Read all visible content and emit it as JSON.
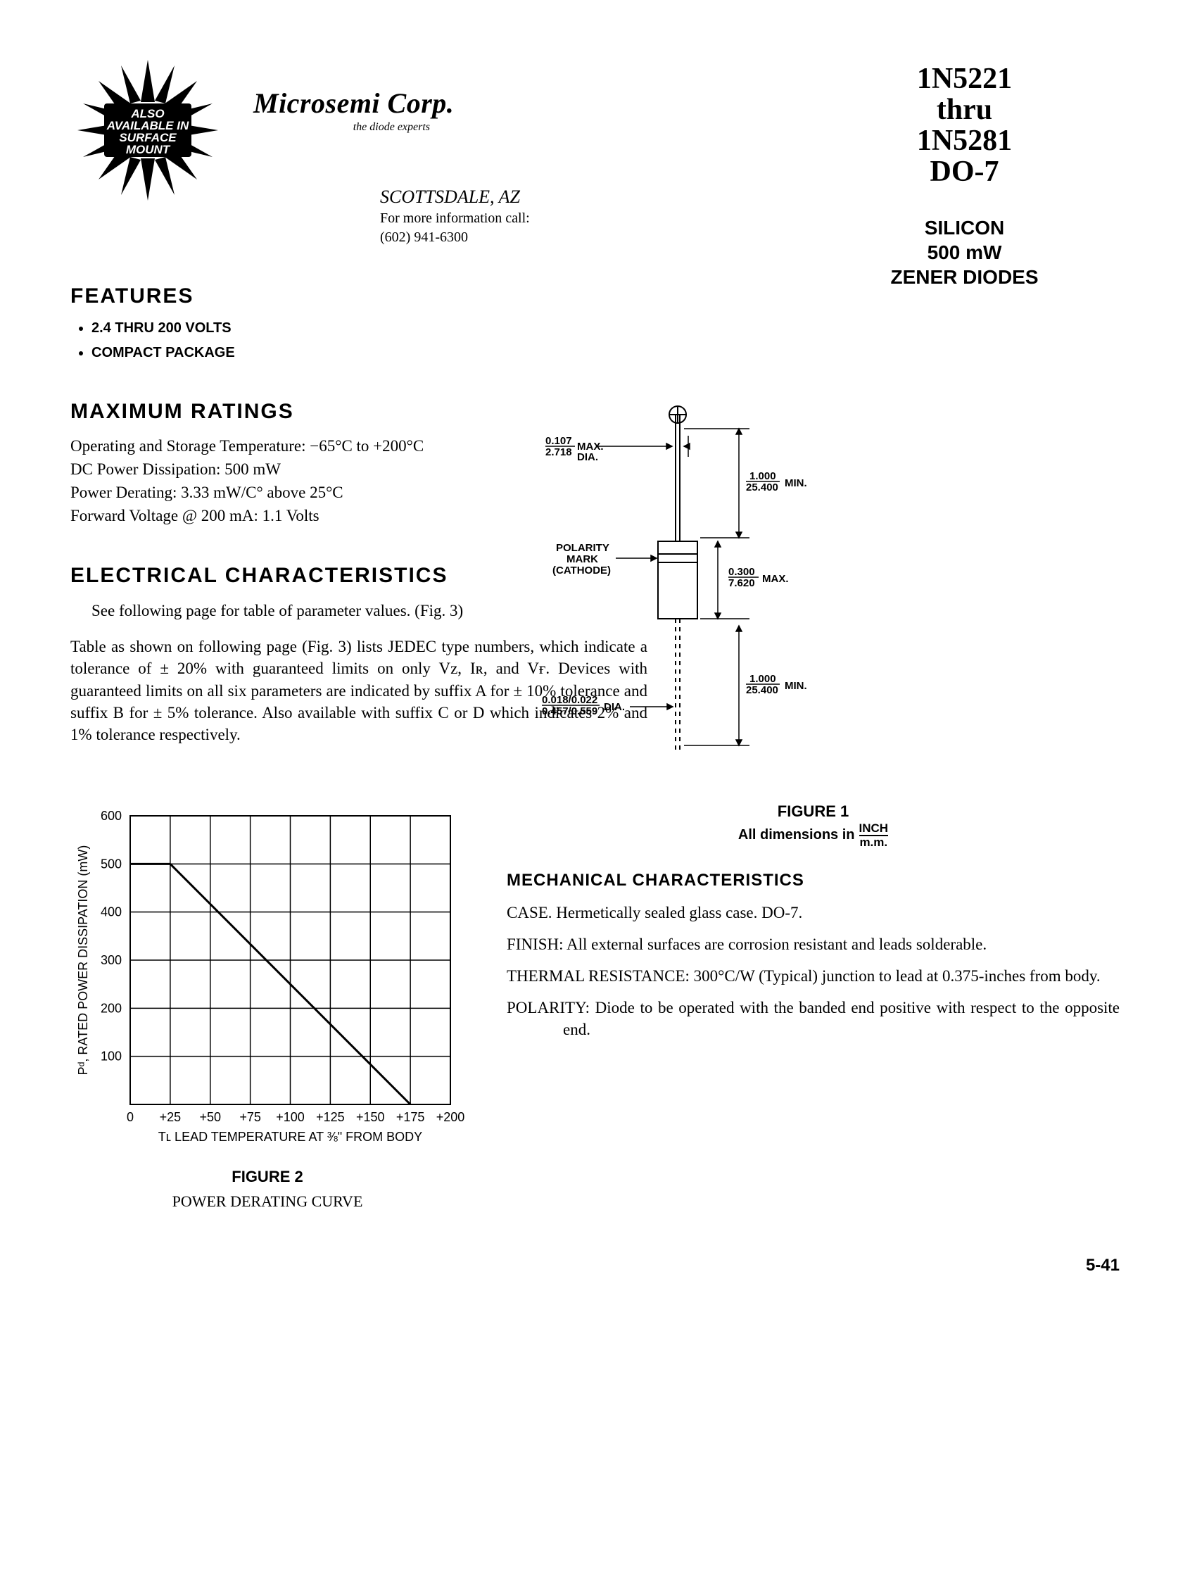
{
  "header": {
    "starburst_lines": [
      "ALSO",
      "AVAILABLE IN",
      "SURFACE",
      "MOUNT"
    ],
    "company_name": "Microsemi Corp.",
    "company_tagline": "the diode experts",
    "location": "SCOTTSDALE, AZ",
    "info_line": "For more information call:",
    "phone": "(602) 941-6300",
    "part_line1": "1N5221",
    "part_line2": "thru",
    "part_line3": "1N5281",
    "part_line4": "DO-7"
  },
  "subtype": {
    "line1": "SILICON",
    "line2": "500 mW",
    "line3": "ZENER DIODES"
  },
  "features": {
    "title": "FEATURES",
    "items": [
      "2.4 THRU 200 VOLTS",
      "COMPACT PACKAGE"
    ]
  },
  "max_ratings": {
    "title": "MAXIMUM RATINGS",
    "lines": [
      "Operating and Storage Temperature: −65°C to +200°C",
      "DC Power Dissipation: 500 mW",
      "Power Derating: 3.33 mW/C° above 25°C",
      "Forward Voltage @ 200 mA: 1.1 Volts"
    ]
  },
  "elec_char": {
    "title": "ELECTRICAL CHARACTERISTICS",
    "note": "See following page for table of parameter values. (Fig. 3)",
    "para": "Table as shown on following page (Fig. 3) lists JEDEC type numbers, which indicate a tolerance of ± 20% with guaranteed limits on only Vᴢ, Iʀ, and Vғ. Devices with guaranteed limits on all six parameters are indicated by suffix A for ± 10% tolerance and suffix B for ± 5% tolerance. Also available with suffix C or D which indicates 2% and 1% tolerance respectively."
  },
  "figure1": {
    "caption": "FIGURE 1",
    "dims_prefix": "All dimensions in",
    "dims_top": "INCH",
    "dims_bot": "m.m.",
    "labels": {
      "dia_top": "0.107",
      "dia_bot": "2.718",
      "dia_suffix": "MAX. DIA.",
      "lead_top": "1.000",
      "lead_bot": "25.400",
      "lead_suffix": "MIN.",
      "body_top": "0.300",
      "body_bot": "7.620",
      "body_suffix": "MAX.",
      "polarity1": "POLARITY",
      "polarity2": "MARK",
      "polarity3": "(CATHODE)",
      "leaddia_top": "0.018/0.022",
      "leaddia_bot": "0.457/0.559",
      "leaddia_suffix": "DIA.",
      "leadmin2_top": "1.000",
      "leadmin2_bot": "25.400",
      "leadmin2_suffix": "MIN."
    }
  },
  "figure2": {
    "caption": "FIGURE 2",
    "subcaption": "POWER DERATING CURVE",
    "ylabel": "Pᵈ, RATED POWER DISSIPATION (mW)",
    "xlabel": "Tʟ LEAD TEMPERATURE AT ⅜\" FROM BODY",
    "x_ticks": [
      "0",
      "+25",
      "+50",
      "+75",
      "+100",
      "+125",
      "+150",
      "+175",
      "+200"
    ],
    "y_ticks": [
      "100",
      "200",
      "300",
      "400",
      "500",
      "600"
    ],
    "ylim": [
      0,
      600
    ],
    "xlim": [
      0,
      200
    ],
    "line_points": [
      [
        25,
        500
      ],
      [
        175,
        0
      ]
    ],
    "colors": {
      "axis": "#000000",
      "grid": "#000000",
      "line": "#000000",
      "bg": "#ffffff"
    },
    "stroke_width": {
      "axis": 2,
      "grid": 1.5,
      "line": 3
    }
  },
  "mechanical": {
    "title": "MECHANICAL CHARACTERISTICS",
    "items": [
      {
        "label": "CASE.",
        "text": "Hermetically sealed glass case. DO-7."
      },
      {
        "label": "FINISH:",
        "text": "All external surfaces are corrosion resistant and leads solderable."
      },
      {
        "label": "THERMAL RESISTANCE:",
        "text": "300°C/W (Typical) junction to lead at 0.375-inches from body."
      },
      {
        "label": "POLARITY:",
        "text": "Diode to be operated with the banded end positive with respect to the opposite end."
      }
    ]
  },
  "page_number": "5-41"
}
